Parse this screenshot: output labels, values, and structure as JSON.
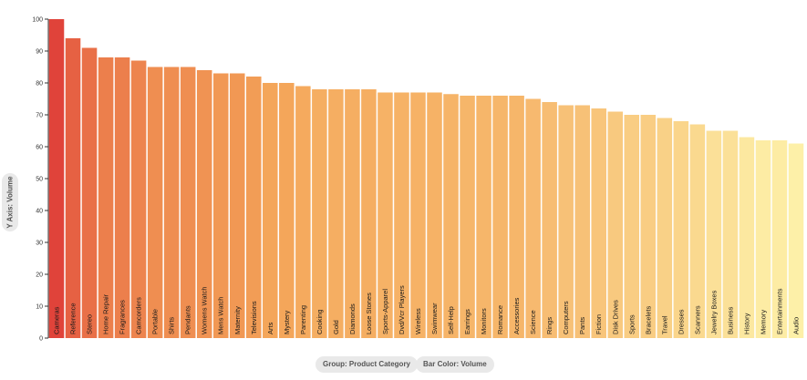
{
  "chart_data": {
    "type": "bar",
    "categories": [
      "Cameras",
      "Reference",
      "Stereo",
      "Home Repair",
      "Fragrances",
      "Camcorders",
      "Portable",
      "Shirts",
      "Pendants",
      "Womens Watch",
      "Mens Watch",
      "Maternity",
      "Televisions",
      "Arts",
      "Mystery",
      "Parenting",
      "Cooking",
      "Gold",
      "Diamonds",
      "Loose Stones",
      "Sports-Apparel",
      "Dvd/Vcr Players",
      "Wireless",
      "Swimwear",
      "Self-Help",
      "Earrings",
      "Monitors",
      "Romance",
      "Accessories",
      "Science",
      "Rings",
      "Computers",
      "Pants",
      "Fiction",
      "Disk Drives",
      "Sports",
      "Bracelets",
      "Travel",
      "Dresses",
      "Scanners",
      "Jewelry Boxes",
      "Business",
      "History",
      "Memory",
      "Entertainments",
      "Audio"
    ],
    "values": [
      100,
      94,
      91,
      88,
      88,
      87,
      85,
      85,
      85,
      84,
      83,
      83,
      82,
      80,
      80,
      79,
      78,
      78,
      78,
      78,
      77,
      77,
      77,
      77,
      76.5,
      76,
      76,
      76,
      76,
      75,
      74,
      73,
      73,
      72,
      71,
      70,
      70,
      69,
      68,
      67,
      65,
      65,
      63,
      62,
      62,
      61
    ],
    "ylim": [
      0,
      100
    ],
    "yticks": [
      0,
      10,
      20,
      30,
      40,
      50,
      60,
      70,
      80,
      90,
      100
    ],
    "color_scale": {
      "low": "#fdf0a8",
      "mid": "#f4a458",
      "high": "#e0433a"
    },
    "grid": false,
    "legend": "none"
  },
  "controls": {
    "y_axis_label": "Y Axis: Volume",
    "group_label": "Group: Product Category",
    "color_label": "Bar Color: Volume"
  }
}
